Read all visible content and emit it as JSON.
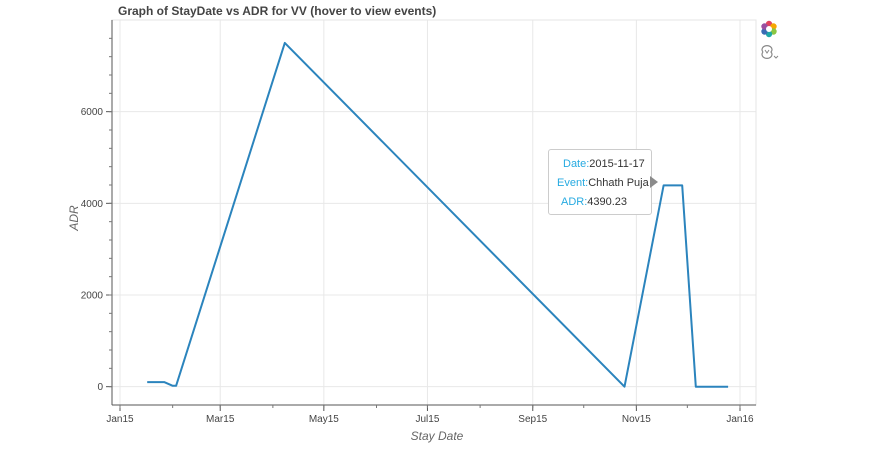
{
  "chart_data": {
    "type": "line",
    "title": "Graph of StayDate vs ADR for VV (hover to view events)",
    "xlabel": "Stay Date",
    "ylabel": "ADR",
    "x_ticks": [
      "Jan15",
      "Mar15",
      "May15",
      "Jul15",
      "Sep15",
      "Nov15",
      "Jan16"
    ],
    "y_ticks": [
      "0",
      "2000",
      "4000",
      "6000"
    ],
    "xlim": [
      "2015-01-01",
      "2016-01-01"
    ],
    "ylim": [
      -400,
      8000
    ],
    "grid": true,
    "series": [
      {
        "color": "#2b84bd",
        "points": [
          {
            "x": "2015-01-17",
            "y": 100
          },
          {
            "x": "2015-01-27",
            "y": 100
          },
          {
            "x": "2015-02-01",
            "y": 20
          },
          {
            "x": "2015-02-03",
            "y": 20
          },
          {
            "x": "2015-04-08",
            "y": 7500
          },
          {
            "x": "2015-10-25",
            "y": 0
          },
          {
            "x": "2015-11-17",
            "y": 4390.23
          },
          {
            "x": "2015-11-28",
            "y": 4390.23
          },
          {
            "x": "2015-12-06",
            "y": 0
          },
          {
            "x": "2015-12-25",
            "y": 0
          }
        ]
      }
    ]
  },
  "tooltip": {
    "date_label": "Date:",
    "date_value": "2015-11-17",
    "event_label": "Event:",
    "event_value": "Chhath Puja",
    "adr_label": "ADR:",
    "adr_value": "4390.23"
  },
  "toolbar": {
    "logo_icon": "bokeh-logo-icon",
    "hover_icon": "hover-tool-icon"
  }
}
